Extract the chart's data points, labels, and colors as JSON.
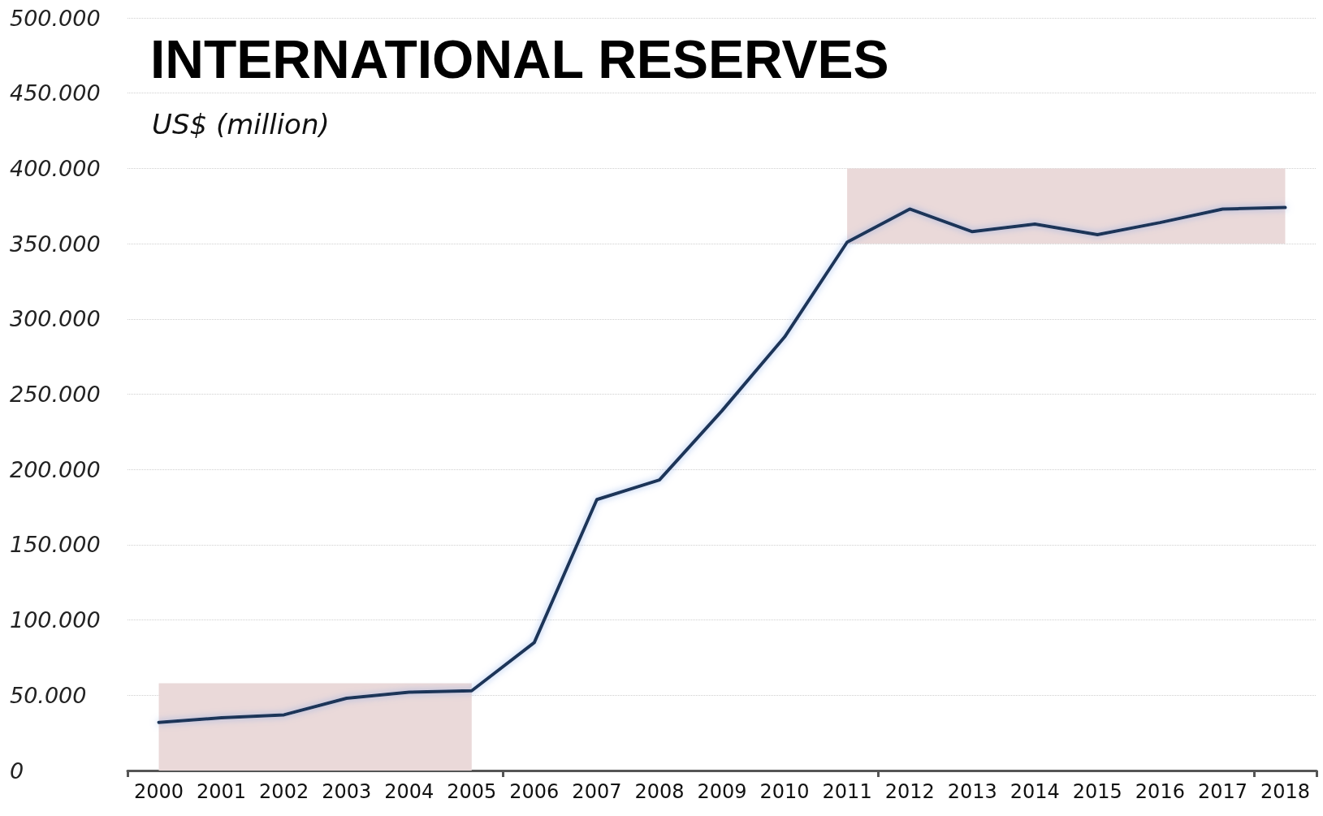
{
  "chart_data": {
    "type": "line",
    "title": "INTERNATIONAL RESERVES",
    "subtitle": "US$ (million)",
    "categories": [
      "2000",
      "2001",
      "2002",
      "2003",
      "2004",
      "2005",
      "2006",
      "2007",
      "2008",
      "2009",
      "2010",
      "2011",
      "2012",
      "2013",
      "2014",
      "2015",
      "2016",
      "2017",
      "2018"
    ],
    "series": [
      {
        "color": "#1f3458",
        "values": [
          32000,
          35000,
          37000,
          48000,
          52000,
          53000,
          85000,
          180000,
          193000,
          239000,
          288000,
          351000,
          373000,
          358000,
          363000,
          356000,
          364000,
          373000,
          374000
        ]
      }
    ],
    "ylim": [
      0,
      500000
    ],
    "yticks": [
      0,
      {
        "value": 50000,
        "label": "50.000"
      },
      {
        "value": 100000,
        "label": "100.000"
      },
      {
        "value": 150000,
        "label": "150.000"
      },
      {
        "value": 200000,
        "label": "200.000"
      },
      {
        "value": 250000,
        "label": "250.000"
      },
      {
        "value": 300000,
        "label": "300.000"
      },
      {
        "value": 350000,
        "label": "350.000"
      },
      {
        "value": 400000,
        "label": "400.000"
      },
      {
        "value": 450000,
        "label": "450.000"
      },
      {
        "value": 500000,
        "label": "500.000"
      }
    ],
    "bands": [
      {
        "axis": "y",
        "from": 0,
        "to": 58000,
        "color": "#ead9d9"
      },
      {
        "axis": "y",
        "from": 350000,
        "to": 400000,
        "color": "#ead9d9"
      }
    ],
    "grid": "y",
    "marker": "none",
    "line_style": "solid"
  }
}
